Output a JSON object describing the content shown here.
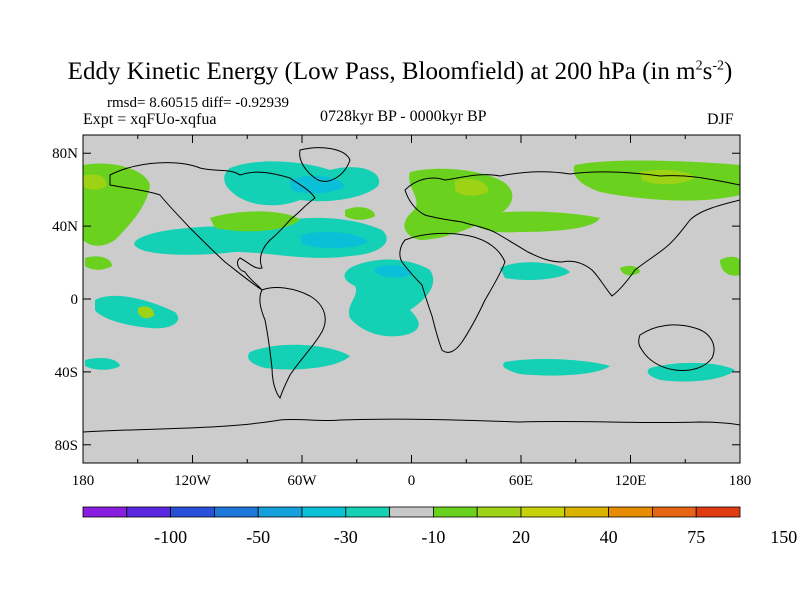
{
  "header": {
    "title_main": "Eddy Kinetic Energy (Low Pass, Bloomfield) at 200 hPa (in m",
    "title_sup1": "2",
    "title_mid": "s",
    "title_sup2": "-2",
    "title_end": ")",
    "stats": "rmsd= 8.60515 diff= -0.92939",
    "expt": "Expt = xqFUo-xqfua",
    "period": "0728kyr BP - 0000kyr BP",
    "season": "DJF"
  },
  "map": {
    "projection": "cylindrical-equidistant",
    "lon_range": [
      -180,
      180
    ],
    "lat_range": [
      -90,
      90
    ],
    "background_color": "#cccccc",
    "coastline_color": "#000000",
    "lat_tick_labels": [
      "80N",
      "40N",
      "0",
      "40S",
      "80S"
    ],
    "lon_tick_labels": [
      "180",
      "120W",
      "60W",
      "0",
      "60E",
      "120E",
      "180"
    ]
  },
  "colorbar": {
    "colors": [
      "#8a1ee0",
      "#5a28e0",
      "#2850d8",
      "#1e78dc",
      "#14a0dc",
      "#0ac0d8",
      "#14d0b4",
      "#c8c8c8",
      "#6ad21e",
      "#9ed214",
      "#c8d20a",
      "#dcb400",
      "#e68c00",
      "#e66414",
      "#e03c14"
    ],
    "labels": [
      "-100",
      "-50",
      "-30",
      "-10",
      "20",
      "40",
      "75",
      "150"
    ]
  },
  "anomalies": {
    "cyan_color": "#14d0b4",
    "cyan_dark_color": "#0ac0d8",
    "green_color": "#6ad21e",
    "yellowgreen_color": "#9ed214"
  }
}
